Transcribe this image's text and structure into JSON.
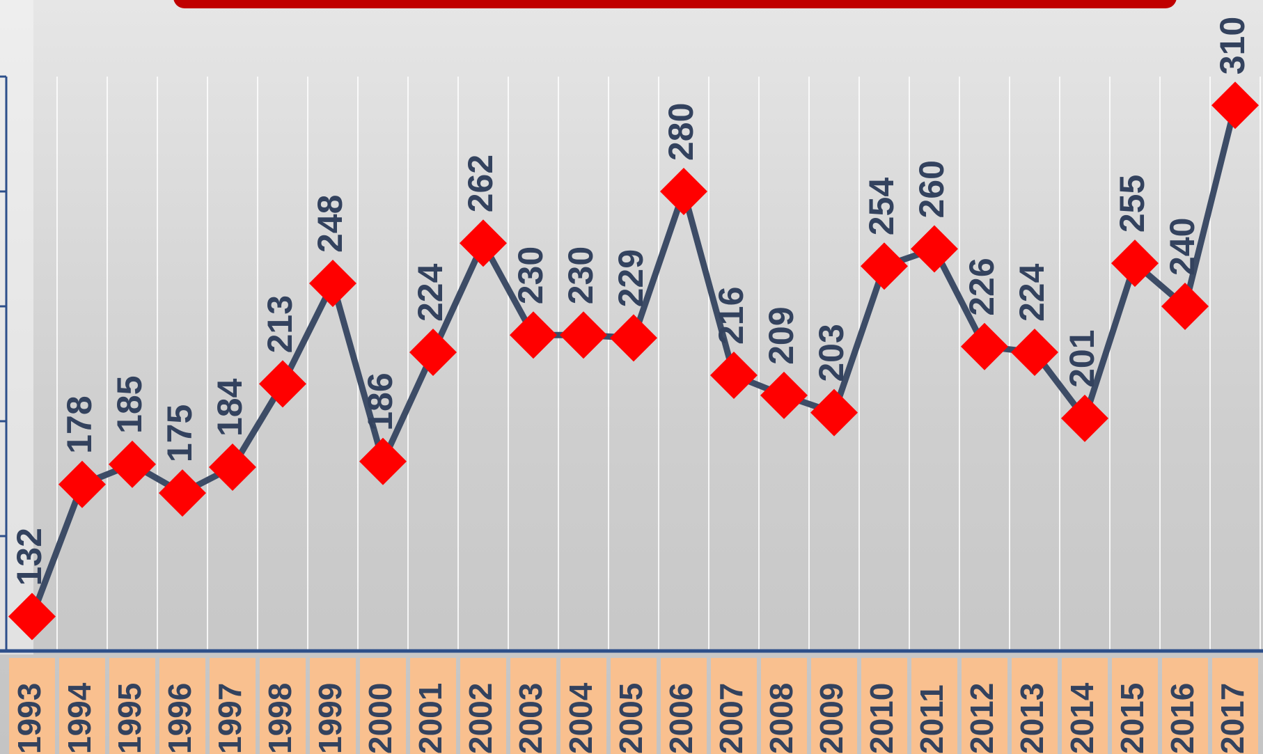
{
  "chart_data": {
    "type": "line",
    "categories": [
      "1993",
      "1994",
      "1995",
      "1996",
      "1997",
      "1998",
      "1999",
      "2000",
      "2001",
      "2002",
      "2003",
      "2004",
      "2005",
      "2006",
      "2007",
      "2008",
      "2009",
      "2010",
      "2011",
      "2012",
      "2013",
      "2014",
      "2015",
      "2016",
      "2017"
    ],
    "values": [
      132,
      178,
      185,
      175,
      184,
      213,
      248,
      186,
      224,
      262,
      230,
      230,
      229,
      280,
      216,
      209,
      203,
      254,
      260,
      226,
      224,
      201,
      255,
      240,
      310
    ],
    "color": "#3d4c66",
    "marker_color": "#ff0000",
    "ylim": [
      120,
      320
    ],
    "yticks": [
      120,
      160,
      200,
      240,
      280,
      320
    ],
    "grid": true
  }
}
